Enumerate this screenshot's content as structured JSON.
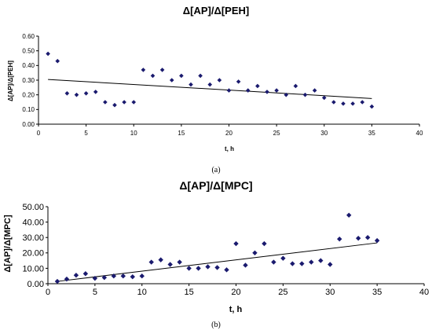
{
  "chart_data": [
    {
      "type": "scatter",
      "title": "Δ[AP]/Δ[PEH]",
      "xlabel": "t, h",
      "ylabel": "Δ[AP]/Δ[PEH]",
      "caption": "(a)",
      "xlim": [
        0,
        40
      ],
      "ylim": [
        0,
        0.6
      ],
      "x_ticks": [
        "0",
        "5",
        "10",
        "15",
        "20",
        "25",
        "30",
        "35",
        "40"
      ],
      "y_ticks": [
        "0.00",
        "0.10",
        "0.20",
        "0.30",
        "0.40",
        "0.50",
        "0.60"
      ],
      "x": [
        1,
        2,
        3,
        4,
        5,
        6,
        7,
        8,
        9,
        10,
        11,
        12,
        13,
        14,
        15,
        16,
        17,
        18,
        19,
        20,
        21,
        22,
        23,
        24,
        25,
        26,
        27,
        28,
        29,
        30,
        31,
        32,
        33,
        34,
        35
      ],
      "y": [
        0.48,
        0.43,
        0.21,
        0.2,
        0.21,
        0.22,
        0.15,
        0.13,
        0.15,
        0.15,
        0.37,
        0.33,
        0.37,
        0.3,
        0.33,
        0.27,
        0.33,
        0.27,
        0.3,
        0.23,
        0.29,
        0.23,
        0.26,
        0.22,
        0.23,
        0.2,
        0.26,
        0.2,
        0.23,
        0.18,
        0.15,
        0.14,
        0.14,
        0.15,
        0.12
      ],
      "trendline": {
        "x": [
          1,
          35
        ],
        "y": [
          0.305,
          0.175
        ]
      },
      "marker_color": "#1a1a6e",
      "line_color": "#000000",
      "grid": false
    },
    {
      "type": "scatter",
      "title": "Δ[AP]/Δ[MPC]",
      "xlabel": "t, h",
      "ylabel": "Δ[AP]/Δ[MPC]",
      "caption": "(b)",
      "xlim": [
        0,
        40
      ],
      "ylim": [
        0,
        50
      ],
      "x_ticks": [
        "0",
        "5",
        "10",
        "15",
        "20",
        "25",
        "30",
        "35",
        "40"
      ],
      "y_ticks": [
        "0.00",
        "10.00",
        "20.00",
        "30.00",
        "40.00",
        "50.00"
      ],
      "x": [
        1,
        2,
        3,
        4,
        5,
        6,
        7,
        8,
        9,
        10,
        11,
        12,
        13,
        14,
        15,
        16,
        17,
        18,
        19,
        20,
        21,
        22,
        23,
        24,
        25,
        26,
        27,
        28,
        29,
        30,
        31,
        32,
        33,
        34,
        35
      ],
      "y": [
        1.5,
        3.0,
        5.5,
        6.5,
        3.5,
        4.0,
        5.0,
        5.0,
        4.5,
        5.0,
        14.0,
        15.5,
        12.5,
        14.0,
        10.0,
        10.0,
        11.0,
        10.5,
        9.0,
        26.0,
        12.0,
        20.0,
        26.0,
        14.0,
        16.5,
        13.0,
        13.0,
        14.0,
        15.0,
        12.5,
        29.0,
        44.5,
        29.5,
        30.0,
        28.0
      ],
      "trendline": {
        "x": [
          1,
          35
        ],
        "y": [
          1.5,
          26.5
        ]
      },
      "marker_color": "#1a1a6e",
      "line_color": "#000000",
      "grid": false
    }
  ]
}
